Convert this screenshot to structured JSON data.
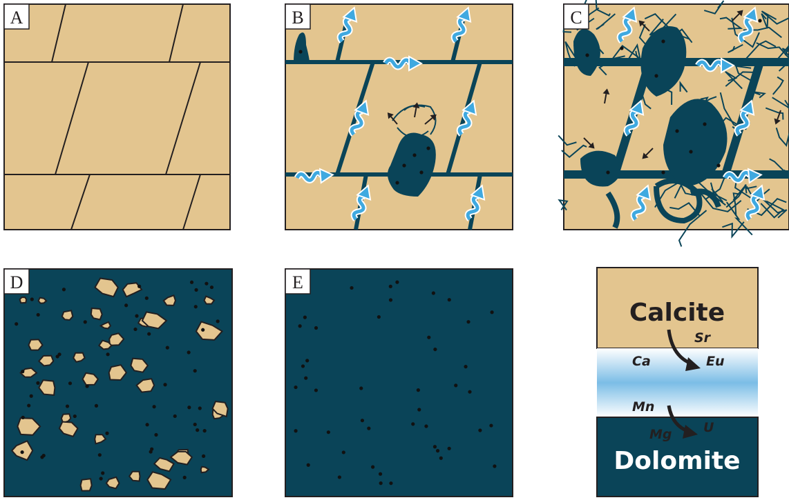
{
  "panels": [
    {
      "label": "A"
    },
    {
      "label": "B"
    },
    {
      "label": "C"
    },
    {
      "label": "D"
    },
    {
      "label": "E"
    }
  ],
  "legend": {
    "top": "Calcite",
    "bottom": "Dolomite",
    "elements": [
      "Sr",
      "Ca",
      "Eu",
      "Mn",
      "Mg",
      "U"
    ]
  }
}
